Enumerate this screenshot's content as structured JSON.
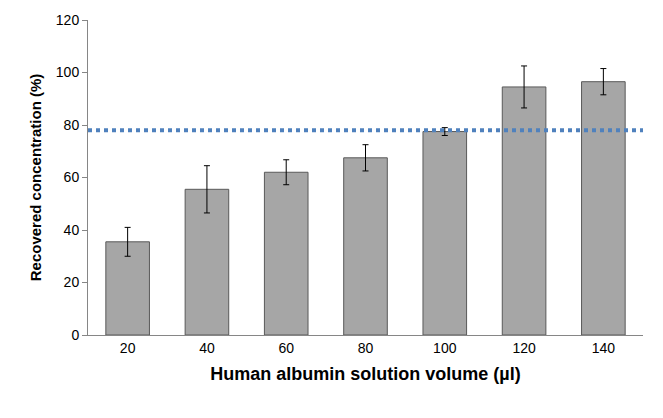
{
  "chart_data": {
    "type": "bar",
    "x_label": "Human albumin solution volume (µl)",
    "y_label": "Recovered concentration (%)",
    "categories": [
      "20",
      "40",
      "60",
      "80",
      "100",
      "120",
      "140"
    ],
    "values": [
      35.5,
      55.5,
      62,
      67.5,
      77.5,
      94.5,
      96.5
    ],
    "error": [
      5.5,
      9,
      4.75,
      5,
      1.5,
      8,
      5
    ],
    "color": "#a6a6a6",
    "ylim": [
      0,
      120
    ],
    "yticks": [
      0,
      20,
      40,
      60,
      80,
      100,
      120
    ],
    "grid": false,
    "reference_line": {
      "value": 78,
      "color": "#4f81bd",
      "line_style": "dot"
    }
  }
}
